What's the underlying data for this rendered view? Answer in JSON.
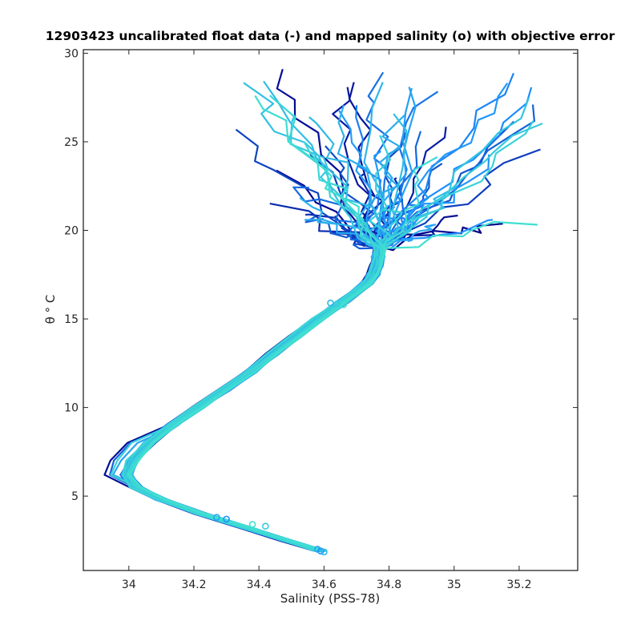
{
  "chart_data": {
    "type": "line",
    "title": "12903423 uncalibrated float data (-) and mapped salinity (o) with objective error",
    "xlabel": "Salinity (PSS-78)",
    "ylabel": "θ ° C",
    "xlim": [
      33.86,
      35.38
    ],
    "ylim": [
      0.8,
      30.2
    ],
    "xticks": [
      34,
      34.2,
      34.4,
      34.6,
      34.8,
      35,
      35.2
    ],
    "xtick_labels": [
      "34",
      "34.2",
      "34.4",
      "34.6",
      "34.8",
      "35",
      "35.2"
    ],
    "yticks": [
      5,
      10,
      15,
      20,
      25,
      30
    ],
    "ytick_labels": [
      "5",
      "10",
      "15",
      "20",
      "25",
      "30"
    ],
    "grid": false,
    "legend": "none",
    "color_scale": [
      "#00008b",
      "#1e90ff",
      "#40e0d0"
    ],
    "profile_count": 60,
    "mean_profile": {
      "theta": [
        1.9,
        2.5,
        3.2,
        4.0,
        4.8,
        5.5,
        6.2,
        7.0,
        8.0,
        9.0,
        10.0,
        11.0,
        12.0,
        13.0,
        14.0,
        15.0,
        16.0,
        17.0,
        17.5,
        18.0,
        18.5,
        19.0
      ],
      "salinity": [
        34.59,
        34.48,
        34.36,
        34.22,
        34.1,
        34.02,
        33.99,
        34.01,
        34.06,
        34.13,
        34.21,
        34.29,
        34.37,
        34.44,
        34.51,
        34.58,
        34.66,
        34.73,
        34.75,
        34.76,
        34.765,
        34.77
      ]
    },
    "surface_spread": {
      "theta_range": [
        19.0,
        29.2
      ],
      "salinity_range": [
        34.3,
        35.3
      ]
    },
    "mapped_points": [
      {
        "salinity": 34.59,
        "theta": 1.9
      },
      {
        "salinity": 34.58,
        "theta": 2.0
      },
      {
        "salinity": 34.6,
        "theta": 1.85
      },
      {
        "salinity": 34.42,
        "theta": 3.3
      },
      {
        "salinity": 34.38,
        "theta": 3.4
      },
      {
        "salinity": 34.3,
        "theta": 3.7
      },
      {
        "salinity": 34.27,
        "theta": 3.8
      },
      {
        "salinity": 34.62,
        "theta": 15.9
      },
      {
        "salinity": 34.64,
        "theta": 15.85
      },
      {
        "salinity": 34.66,
        "theta": 15.8
      }
    ]
  }
}
